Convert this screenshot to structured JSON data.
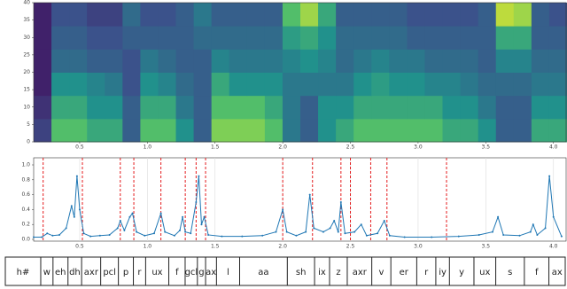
{
  "chart_data": [
    {
      "type": "heatmap",
      "xlim": [
        0.16,
        4.1
      ],
      "ylim": [
        0,
        40
      ],
      "yticks": [
        0,
        5,
        10,
        15,
        20,
        25,
        30,
        35,
        40
      ],
      "xticks": [
        {
          "value": 0.5,
          "label": "0.5"
        },
        {
          "value": 1,
          "label": "1.0"
        },
        {
          "value": 1.5,
          "label": "1.5"
        },
        {
          "value": 2,
          "label": "2.0"
        },
        {
          "value": 2.5,
          "label": "2.5"
        },
        {
          "value": 3,
          "label": "3.0"
        },
        {
          "value": 3.5,
          "label": "3.5"
        },
        {
          "value": 4,
          "label": "4.0"
        }
      ],
      "z": [
        [
          0.2,
          0.7,
          0.7,
          0.6,
          0.6,
          0.3,
          0.7,
          0.7,
          0.5,
          0.3,
          0.8,
          0.8,
          0.8,
          0.7,
          0.4,
          0.3,
          0.5,
          0.6,
          0.7,
          0.7,
          0.7,
          0.7,
          0.7,
          0.6,
          0.6,
          0.5,
          0.3,
          0.3,
          0.6,
          0.6
        ],
        [
          0.15,
          0.6,
          0.6,
          0.5,
          0.5,
          0.3,
          0.6,
          0.6,
          0.4,
          0.3,
          0.7,
          0.7,
          0.7,
          0.6,
          0.4,
          0.3,
          0.5,
          0.5,
          0.6,
          0.6,
          0.6,
          0.6,
          0.6,
          0.5,
          0.5,
          0.4,
          0.3,
          0.3,
          0.5,
          0.5
        ],
        [
          0.1,
          0.5,
          0.5,
          0.45,
          0.4,
          0.25,
          0.5,
          0.45,
          0.35,
          0.3,
          0.6,
          0.5,
          0.5,
          0.5,
          0.4,
          0.4,
          0.4,
          0.4,
          0.5,
          0.55,
          0.5,
          0.5,
          0.45,
          0.45,
          0.4,
          0.35,
          0.35,
          0.35,
          0.4,
          0.4
        ],
        [
          0.1,
          0.35,
          0.35,
          0.3,
          0.3,
          0.25,
          0.4,
          0.35,
          0.3,
          0.3,
          0.45,
          0.4,
          0.4,
          0.4,
          0.45,
          0.5,
          0.45,
          0.35,
          0.4,
          0.45,
          0.4,
          0.4,
          0.35,
          0.35,
          0.35,
          0.3,
          0.45,
          0.45,
          0.35,
          0.35
        ],
        [
          0.1,
          0.3,
          0.3,
          0.25,
          0.25,
          0.3,
          0.3,
          0.3,
          0.3,
          0.35,
          0.35,
          0.35,
          0.35,
          0.35,
          0.55,
          0.6,
          0.5,
          0.35,
          0.35,
          0.35,
          0.35,
          0.3,
          0.3,
          0.3,
          0.3,
          0.3,
          0.6,
          0.6,
          0.3,
          0.3
        ],
        [
          0.1,
          0.25,
          0.25,
          0.2,
          0.2,
          0.35,
          0.25,
          0.25,
          0.3,
          0.4,
          0.3,
          0.3,
          0.3,
          0.3,
          0.7,
          0.85,
          0.6,
          0.3,
          0.3,
          0.3,
          0.3,
          0.25,
          0.25,
          0.25,
          0.25,
          0.3,
          0.9,
          0.85,
          0.3,
          0.25
        ]
      ]
    },
    {
      "type": "line",
      "xlim": [
        0.16,
        4.1
      ],
      "ylim": [
        0,
        1.0
      ],
      "yticks": [
        {
          "value": 0,
          "label": "0.0"
        },
        0.2,
        0.4,
        0.6,
        0.8,
        {
          "value": 1,
          "label": "1.0"
        }
      ],
      "xticks": [
        {
          "value": 0.5,
          "label": "0.5"
        },
        {
          "value": 1,
          "label": "1.0"
        },
        {
          "value": 1.5,
          "label": "1.5"
        },
        {
          "value": 2,
          "label": "2.0"
        },
        {
          "value": 2.5,
          "label": "2.5"
        },
        {
          "value": 3,
          "label": "3.0"
        },
        {
          "value": 3.5,
          "label": "3.5"
        },
        {
          "value": 4,
          "label": "4.0"
        }
      ],
      "grid": true,
      "series": [
        {
          "color": "#1f77b4",
          "x": [
            0.16,
            0.22,
            0.26,
            0.3,
            0.35,
            0.4,
            0.44,
            0.46,
            0.48,
            0.5,
            0.53,
            0.58,
            0.65,
            0.72,
            0.78,
            0.8,
            0.83,
            0.87,
            0.89,
            0.92,
            0.98,
            1.05,
            1.1,
            1.13,
            1.2,
            1.24,
            1.26,
            1.28,
            1.32,
            1.36,
            1.38,
            1.4,
            1.42,
            1.45,
            1.55,
            1.7,
            1.85,
            1.95,
            2,
            2.03,
            2.1,
            2.17,
            2.2,
            2.23,
            2.3,
            2.35,
            2.38,
            2.41,
            2.43,
            2.46,
            2.53,
            2.58,
            2.62,
            2.7,
            2.75,
            2.79,
            2.9,
            3.1,
            3.3,
            3.45,
            3.55,
            3.59,
            3.63,
            3.75,
            3.83,
            3.85,
            3.88,
            3.94,
            3.97,
            4,
            4.06
          ],
          "values": [
            0.03,
            0.03,
            0.08,
            0.05,
            0.06,
            0.15,
            0.45,
            0.3,
            0.85,
            0.4,
            0.08,
            0.04,
            0.05,
            0.06,
            0.15,
            0.25,
            0.12,
            0.3,
            0.35,
            0.1,
            0.05,
            0.08,
            0.35,
            0.1,
            0.05,
            0.12,
            0.3,
            0.1,
            0.08,
            0.5,
            0.85,
            0.2,
            0.3,
            0.06,
            0.04,
            0.04,
            0.05,
            0.1,
            0.4,
            0.1,
            0.05,
            0.1,
            0.6,
            0.15,
            0.1,
            0.15,
            0.25,
            0.1,
            0.5,
            0.08,
            0.1,
            0.2,
            0.05,
            0.08,
            0.25,
            0.05,
            0.03,
            0.03,
            0.04,
            0.06,
            0.1,
            0.3,
            0.06,
            0.05,
            0.1,
            0.2,
            0.06,
            0.15,
            0.85,
            0.3,
            0.04
          ]
        }
      ],
      "vlines": {
        "color": "#e41a1c",
        "values": [
          0.23,
          0.52,
          0.8,
          0.9,
          1.1,
          1.28,
          1.36,
          1.43,
          2.0,
          2.22,
          2.43,
          2.5,
          2.65,
          2.77,
          3.21
        ]
      }
    },
    {
      "type": "segments",
      "xlim": [
        -0.05,
        4.06
      ],
      "boundaries": [
        -0.05,
        0.21,
        0.3,
        0.41,
        0.51,
        0.65,
        0.78,
        0.89,
        0.98,
        1.15,
        1.27,
        1.36,
        1.42,
        1.5,
        1.67,
        2.02,
        2.22,
        2.33,
        2.46,
        2.64,
        2.78,
        2.97,
        3.11,
        3.21,
        3.39,
        3.55,
        3.76,
        3.94,
        4.06
      ],
      "labels": [
        "h#",
        "w",
        "eh",
        "dh",
        "axr",
        "pcl",
        "p",
        "r",
        "ux",
        "f",
        "gcl",
        "g",
        "ax",
        "l",
        "aa",
        "sh",
        "ix",
        "z",
        "axr",
        "v",
        "er",
        "r",
        "iy",
        "y",
        "ux",
        "s",
        "f",
        "ax"
      ]
    }
  ]
}
